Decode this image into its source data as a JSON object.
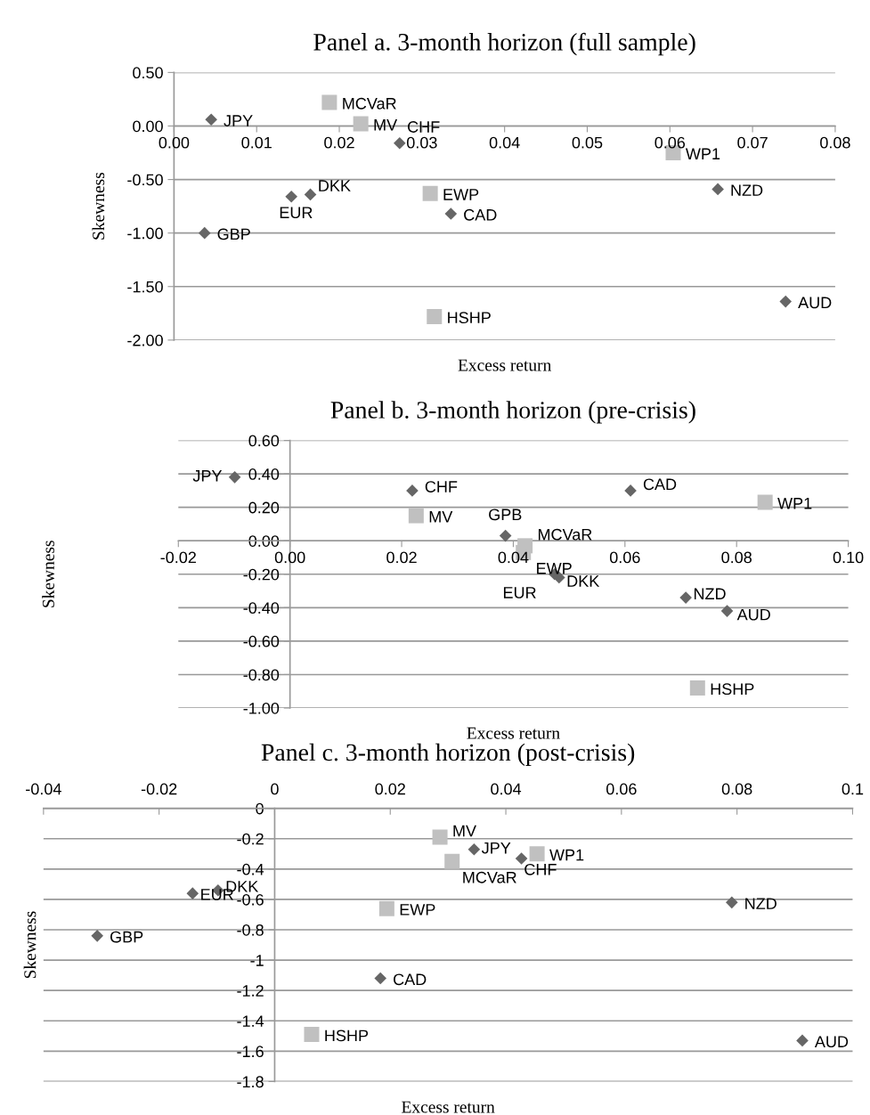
{
  "chart_data": [
    {
      "type": "scatter",
      "title": "Panel a. 3-month horizon (full sample)",
      "xlabel": "Excess return",
      "ylabel": "Skewness",
      "xlim": [
        0,
        0.08
      ],
      "xticks": [
        {
          "value": 0,
          "label": "0.00"
        },
        0.01,
        0.02,
        0.03,
        0.04,
        0.05,
        0.06,
        0.07,
        0.08
      ],
      "ylim": [
        -2,
        0.5
      ],
      "yticks": [
        {
          "value": -2,
          "label": "-2.00"
        },
        {
          "value": -1.5,
          "label": "-1.50"
        },
        {
          "value": -1,
          "label": "-1.00"
        },
        {
          "value": -0.5,
          "label": "-0.50"
        },
        {
          "value": 0,
          "label": "0.00"
        },
        {
          "value": 0.5,
          "label": "0.50"
        }
      ],
      "grid": "y",
      "series": [
        {
          "color": "#666666",
          "marker": "diamond",
          "x": [
            0.0045,
            0.0273,
            0.0165,
            0.0142,
            0.0335,
            0.0037,
            0.0658,
            0.074
          ],
          "values": [
            0.06,
            -0.16,
            -0.64,
            -0.66,
            -0.82,
            -1.0,
            -0.59,
            -1.64
          ]
        },
        {
          "color": "#c0c0c0",
          "marker": "square",
          "x": [
            0.0188,
            0.0226,
            0.0604,
            0.031,
            0.0315
          ],
          "values": [
            0.22,
            0.02,
            -0.25,
            -0.63,
            -1.78
          ]
        }
      ],
      "annotations": [
        {
          "text": "JPY",
          "x": 0.0045,
          "y": 0.06
        },
        {
          "text": "CHF",
          "x": 0.0273,
          "y": -0.16
        },
        {
          "text": "DKK",
          "x": 0.0165,
          "y": -0.64
        },
        {
          "text": "EUR",
          "x": 0.0142,
          "y": -0.66
        },
        {
          "text": "CAD",
          "x": 0.0335,
          "y": -0.82
        },
        {
          "text": "GBP",
          "x": 0.0037,
          "y": -1.0
        },
        {
          "text": "NZD",
          "x": 0.0658,
          "y": -0.59
        },
        {
          "text": "AUD",
          "x": 0.074,
          "y": -1.64
        },
        {
          "text": "MCVaR",
          "x": 0.0188,
          "y": 0.22
        },
        {
          "text": "MV",
          "x": 0.0226,
          "y": 0.02
        },
        {
          "text": "WP1",
          "x": 0.0604,
          "y": -0.25
        },
        {
          "text": "EWP",
          "x": 0.031,
          "y": -0.63
        },
        {
          "text": "HSHP",
          "x": 0.0315,
          "y": -1.78
        }
      ]
    },
    {
      "type": "scatter",
      "title": "Panel b. 3-month horizon (pre-crisis)",
      "xlabel": "Excess return",
      "ylabel": "Skewness",
      "xlim": [
        -0.02,
        0.1
      ],
      "xticks": [
        {
          "value": -0.02,
          "label": "-0.02"
        },
        {
          "value": 0,
          "label": "0.00"
        },
        0.02,
        0.04,
        0.06,
        0.08,
        {
          "value": 0.1,
          "label": "0.10"
        }
      ],
      "ylim": [
        -1,
        0.6
      ],
      "yticks": [
        {
          "value": -1,
          "label": "-1.00"
        },
        {
          "value": -0.8,
          "label": "-0.80"
        },
        {
          "value": -0.6,
          "label": "-0.60"
        },
        {
          "value": -0.4,
          "label": "-0.40"
        },
        {
          "value": -0.2,
          "label": "-0.20"
        },
        {
          "value": 0,
          "label": "0.00"
        },
        {
          "value": 0.2,
          "label": "0.20"
        },
        {
          "value": 0.4,
          "label": "0.40"
        },
        {
          "value": 0.6,
          "label": "0.60"
        }
      ],
      "grid": "y",
      "series": [
        {
          "color": "#666666",
          "marker": "diamond",
          "x": [
            -0.0099,
            0.0219,
            0.0386,
            0.0474,
            0.0482,
            0.061,
            0.0709,
            0.0783
          ],
          "values": [
            0.38,
            0.3,
            0.03,
            -0.2,
            -0.22,
            0.3,
            -0.34,
            -0.42
          ]
        },
        {
          "color": "#c0c0c0",
          "marker": "square",
          "x": [
            0.0226,
            0.0421,
            0.0418,
            0.0851,
            0.073
          ],
          "values": [
            0.15,
            -0.03,
            -0.07,
            0.23,
            -0.88
          ]
        }
      ],
      "annotations": [
        {
          "text": "JPY",
          "x": -0.0099,
          "y": 0.38
        },
        {
          "text": "CHF",
          "x": 0.0219,
          "y": 0.3
        },
        {
          "text": "GPB",
          "x": 0.0386,
          "y": 0.03
        },
        {
          "text": "EUR",
          "x": 0.0474,
          "y": -0.2
        },
        {
          "text": "DKK",
          "x": 0.0482,
          "y": -0.22
        },
        {
          "text": "CAD",
          "x": 0.061,
          "y": 0.3
        },
        {
          "text": "NZD",
          "x": 0.0709,
          "y": -0.34
        },
        {
          "text": "AUD",
          "x": 0.0783,
          "y": -0.42
        },
        {
          "text": "MV",
          "x": 0.0226,
          "y": 0.15
        },
        {
          "text": "MCVaR",
          "x": 0.0421,
          "y": -0.03
        },
        {
          "text": "EWP",
          "x": 0.0418,
          "y": -0.07
        },
        {
          "text": "WP1",
          "x": 0.0851,
          "y": 0.23
        },
        {
          "text": "HSHP",
          "x": 0.073,
          "y": -0.88
        }
      ]
    },
    {
      "type": "scatter",
      "title": "Panel c. 3-month horizon (post-crisis)",
      "xlabel": "Excess return",
      "ylabel": "Skewness",
      "xlim": [
        -0.04,
        0.1
      ],
      "xticks": [
        -0.04,
        -0.02,
        0,
        0.02,
        0.04,
        0.06,
        0.08,
        0.1
      ],
      "ylim": [
        -1.8,
        0
      ],
      "yticks": [
        -1.8,
        -1.6,
        -1.4,
        -1.2,
        -1,
        -0.8,
        -0.6,
        -0.4,
        -0.2,
        0
      ],
      "grid": "y",
      "series": [
        {
          "color": "#666666",
          "marker": "diamond",
          "x": [
            0.0345,
            0.0427,
            -0.0142,
            -0.0098,
            -0.0307,
            0.0183,
            0.0791,
            0.0913
          ],
          "values": [
            -0.27,
            -0.33,
            -0.56,
            -0.54,
            -0.84,
            -1.12,
            -0.62,
            -1.53
          ]
        },
        {
          "color": "#c0c0c0",
          "marker": "square",
          "x": [
            0.0286,
            0.0307,
            0.0454,
            0.0194,
            0.0064
          ],
          "values": [
            -0.19,
            -0.35,
            -0.3,
            -0.66,
            -1.49
          ]
        }
      ],
      "annotations": [
        {
          "text": "JPY",
          "x": 0.0345,
          "y": -0.27
        },
        {
          "text": "CHF",
          "x": 0.0427,
          "y": -0.33
        },
        {
          "text": "EUR",
          "x": -0.0142,
          "y": -0.56
        },
        {
          "text": "DKK",
          "x": -0.0098,
          "y": -0.54
        },
        {
          "text": "GBP",
          "x": -0.0307,
          "y": -0.84
        },
        {
          "text": "CAD",
          "x": 0.0183,
          "y": -1.12
        },
        {
          "text": "NZD",
          "x": 0.0791,
          "y": -0.62
        },
        {
          "text": "AUD",
          "x": 0.0913,
          "y": -1.53
        },
        {
          "text": "MV",
          "x": 0.0286,
          "y": -0.19
        },
        {
          "text": "MCVaR",
          "x": 0.0307,
          "y": -0.35
        },
        {
          "text": "WP1",
          "x": 0.0454,
          "y": -0.3
        },
        {
          "text": "EWP",
          "x": 0.0194,
          "y": -0.66
        },
        {
          "text": "HSHP",
          "x": 0.0064,
          "y": -1.49
        }
      ]
    }
  ]
}
